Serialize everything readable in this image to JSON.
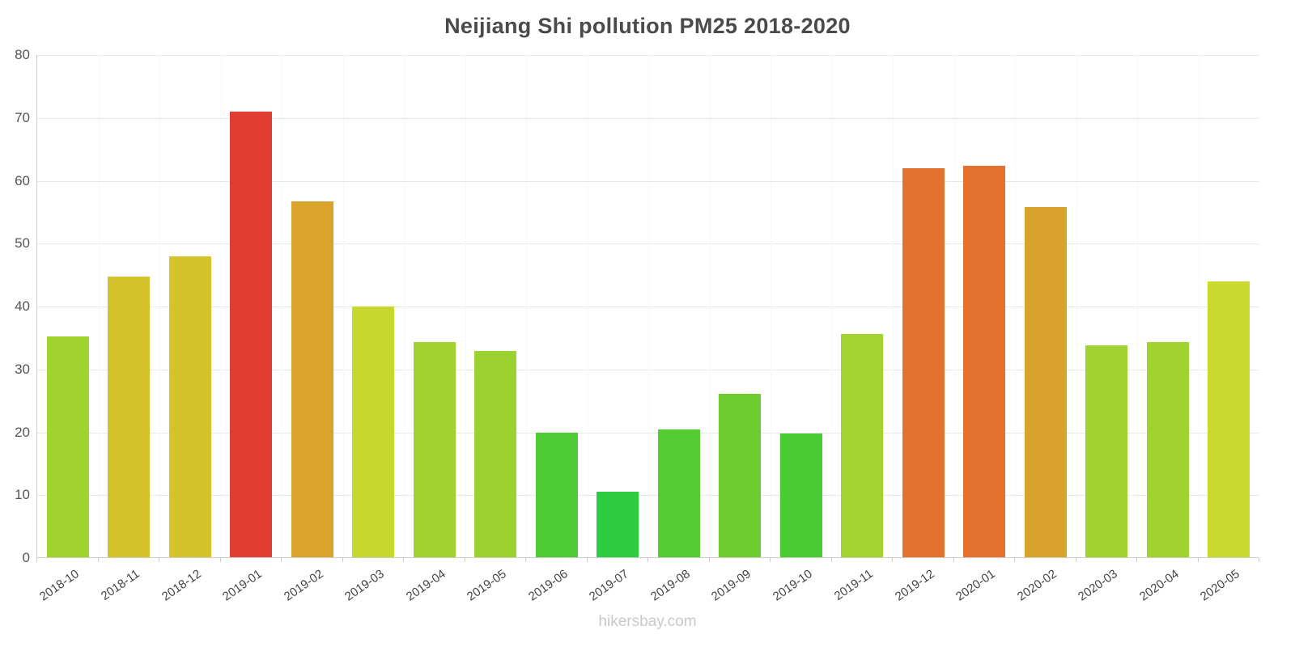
{
  "footer": {
    "text": "hikersbay.com"
  },
  "chart_data": {
    "type": "bar",
    "title": "Neijiang Shi pollution PM25 2018-2020",
    "categories": [
      "2018-10",
      "2018-11",
      "2018-12",
      "2019-01",
      "2019-02",
      "2019-03",
      "2019-04",
      "2019-05",
      "2019-06",
      "2019-07",
      "2019-08",
      "2019-09",
      "2019-10",
      "2019-11",
      "2019-12",
      "2020-01",
      "2020-02",
      "2020-03",
      "2020-04",
      "2020-05"
    ],
    "values": [
      35.3,
      44.8,
      48,
      71,
      56.7,
      40,
      34.3,
      32.9,
      20,
      10.6,
      20.5,
      26.1,
      19.8,
      35.6,
      62,
      62.4,
      55.8,
      33.8,
      34.3,
      44
    ],
    "bar_colors": [
      "#a0d32f",
      "#d5c32c",
      "#d5c32c",
      "#e23d32",
      "#daa32c",
      "#c6d72e",
      "#a0d32f",
      "#9cd230",
      "#4fcb33",
      "#2ecc40",
      "#55cb32",
      "#6ecb2f",
      "#49cb34",
      "#a2d32f",
      "#e2722e",
      "#e2722e",
      "#d9a22c",
      "#a0d32f",
      "#a0d32f",
      "#c9d92e"
    ],
    "xlabel": "",
    "ylabel": "",
    "ylim": [
      0,
      80
    ],
    "yticks": [
      0,
      10,
      20,
      30,
      40,
      50,
      60,
      70,
      80
    ],
    "grid": true,
    "legend": false
  },
  "colors": {
    "axis": "#cccccc",
    "gridline": "#e8e8e8",
    "tick_label": "#555555",
    "title": "#4a4a4a",
    "footer": "#c9c9c9"
  }
}
